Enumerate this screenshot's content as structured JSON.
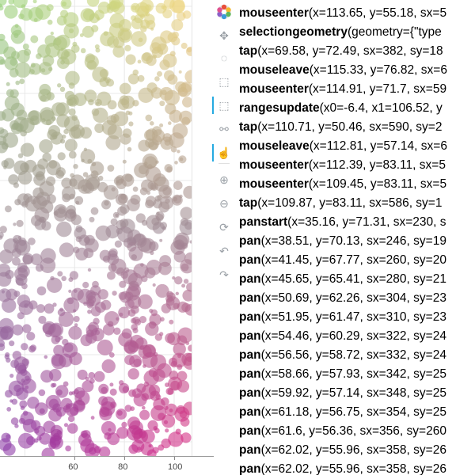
{
  "toolbar": {
    "tools": [
      {
        "name": "bokeh-logo",
        "glyph": "",
        "active": false
      },
      {
        "name": "pan-tool",
        "glyph": "✥",
        "active": false
      },
      {
        "name": "lasso-select-tool",
        "glyph": "◌",
        "active": false
      },
      {
        "name": "zoom-in-box-tool",
        "glyph": "⬚",
        "active": false
      },
      {
        "name": "box-select-tool",
        "glyph": "⬚",
        "active": true
      },
      {
        "name": "poly-select-tool",
        "glyph": "⚯",
        "active": false
      },
      {
        "name": "tap-tool",
        "glyph": "☝",
        "active": true
      },
      {
        "name": "zoom-in-tool",
        "glyph": "⊕",
        "active": false
      },
      {
        "name": "zoom-out-tool",
        "glyph": "⊖",
        "active": false
      },
      {
        "name": "reset-tool",
        "glyph": "⟳",
        "active": false
      },
      {
        "name": "undo-tool",
        "glyph": "↶",
        "active": false
      },
      {
        "name": "redo-tool",
        "glyph": "↷",
        "active": false
      }
    ]
  },
  "plot": {
    "x_ticks": [
      "60",
      "80",
      "100"
    ]
  },
  "chart_data": {
    "type": "scatter",
    "xlabel": "",
    "ylabel": "",
    "xlim": [
      30,
      107
    ],
    "ylim": [
      0,
      100
    ],
    "grid": true,
    "legend": "none"
  },
  "event_log": [
    {
      "name": "mouseenter",
      "args": "(x=113.65, y=55.18, sx=5"
    },
    {
      "name": "selectiongeometry",
      "args": "(geometry={\"type"
    },
    {
      "name": "tap",
      "args": "(x=69.58, y=72.49, sx=382, sy=18"
    },
    {
      "name": "mouseleave",
      "args": "(x=115.33, y=76.82, sx=6"
    },
    {
      "name": "mouseenter",
      "args": "(x=114.91, y=71.7, sx=59"
    },
    {
      "name": "rangesupdate",
      "args": "(x0=-6.4, x1=106.52, y"
    },
    {
      "name": "tap",
      "args": "(x=110.71, y=50.46, sx=590, sy=2"
    },
    {
      "name": "mouseleave",
      "args": "(x=112.81, y=57.14, sx=6"
    },
    {
      "name": "mouseenter",
      "args": "(x=112.39, y=83.11, sx=5"
    },
    {
      "name": "mouseenter",
      "args": "(x=109.45, y=83.11, sx=5"
    },
    {
      "name": "tap",
      "args": "(x=109.87, y=83.11, sx=586, sy=1"
    },
    {
      "name": "panstart",
      "args": "(x=35.16, y=71.31, sx=230, s"
    },
    {
      "name": "pan",
      "args": "(x=38.51, y=70.13, sx=246, sy=19"
    },
    {
      "name": "pan",
      "args": "(x=41.45, y=67.77, sx=260, sy=20"
    },
    {
      "name": "pan",
      "args": "(x=45.65, y=65.41, sx=280, sy=21"
    },
    {
      "name": "pan",
      "args": "(x=50.69, y=62.26, sx=304, sy=23"
    },
    {
      "name": "pan",
      "args": "(x=51.95, y=61.47, sx=310, sy=23"
    },
    {
      "name": "pan",
      "args": "(x=54.46, y=60.29, sx=322, sy=24"
    },
    {
      "name": "pan",
      "args": "(x=56.56, y=58.72, sx=332, sy=24"
    },
    {
      "name": "pan",
      "args": "(x=58.66, y=57.93, sx=342, sy=25"
    },
    {
      "name": "pan",
      "args": "(x=59.92, y=57.14, sx=348, sy=25"
    },
    {
      "name": "pan",
      "args": "(x=61.18, y=56.75, sx=354, sy=25"
    },
    {
      "name": "pan",
      "args": "(x=61.6, y=56.36, sx=356, sy=260"
    },
    {
      "name": "pan",
      "args": "(x=62.02, y=55.96, sx=358, sy=26"
    },
    {
      "name": "pan",
      "args": "(x=62.02, y=55.96, sx=358, sy=26"
    }
  ]
}
